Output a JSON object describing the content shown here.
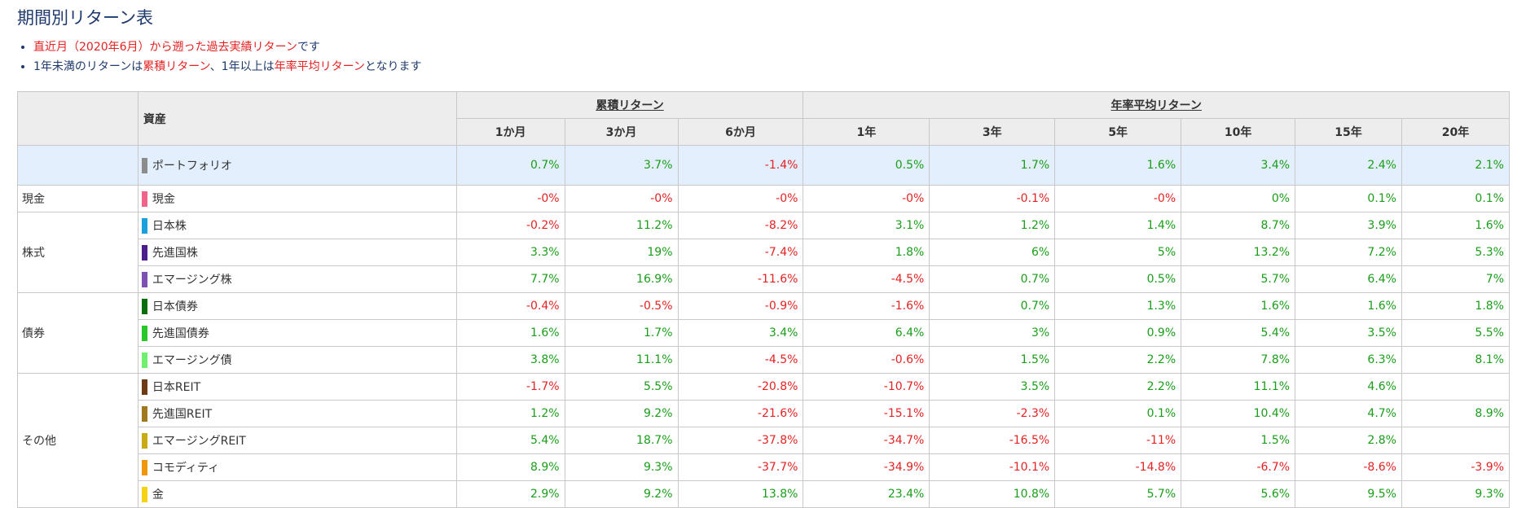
{
  "page": {
    "title": "期間別リターン表",
    "note1": {
      "red": "直近月（2020年6月）から遡った過去実績リターン",
      "after": "です"
    },
    "note2": {
      "p1": "1年未満のリターンは",
      "r1": "累積リターン",
      "p2": "、1年以上は",
      "r2": "年率平均リターン",
      "p3": "となります"
    }
  },
  "table": {
    "asset_header": "資産",
    "group_cumulative": "累積リターン",
    "group_annual": "年率平均リターン",
    "periods": [
      "1か月",
      "3か月",
      "6か月",
      "1年",
      "3年",
      "5年",
      "10年",
      "15年",
      "20年"
    ],
    "portfolio": {
      "name": "ポートフォリオ",
      "color": "#8c8c8c",
      "values": [
        "0.7%",
        "3.7%",
        "-1.4%",
        "0.5%",
        "1.7%",
        "1.6%",
        "3.4%",
        "2.4%",
        "2.1%"
      ]
    },
    "categories": [
      {
        "name": "現金",
        "rows": [
          {
            "name": "現金",
            "color": "#f0648c",
            "values": [
              "-0%",
              "-0%",
              "-0%",
              "-0%",
              "-0.1%",
              "-0%",
              "0%",
              "0.1%",
              "0.1%"
            ]
          }
        ]
      },
      {
        "name": "株式",
        "rows": [
          {
            "name": "日本株",
            "color": "#1aa0dc",
            "values": [
              "-0.2%",
              "11.2%",
              "-8.2%",
              "3.1%",
              "1.2%",
              "1.4%",
              "8.7%",
              "3.9%",
              "1.6%"
            ]
          },
          {
            "name": "先進国株",
            "color": "#4b1e8c",
            "values": [
              "3.3%",
              "19%",
              "-7.4%",
              "1.8%",
              "6%",
              "5%",
              "13.2%",
              "7.2%",
              "5.3%"
            ]
          },
          {
            "name": "エマージング株",
            "color": "#7d50b4",
            "values": [
              "7.7%",
              "16.9%",
              "-11.6%",
              "-4.5%",
              "0.7%",
              "0.5%",
              "5.7%",
              "6.4%",
              "7%"
            ]
          }
        ]
      },
      {
        "name": "債券",
        "rows": [
          {
            "name": "日本債券",
            "color": "#0a6e0a",
            "values": [
              "-0.4%",
              "-0.5%",
              "-0.9%",
              "-1.6%",
              "0.7%",
              "1.3%",
              "1.6%",
              "1.6%",
              "1.8%"
            ]
          },
          {
            "name": "先進国債券",
            "color": "#28c828",
            "values": [
              "1.6%",
              "1.7%",
              "3.4%",
              "6.4%",
              "3%",
              "0.9%",
              "5.4%",
              "3.5%",
              "5.5%"
            ]
          },
          {
            "name": "エマージング債",
            "color": "#6ef06e",
            "values": [
              "3.8%",
              "11.1%",
              "-4.5%",
              "-0.6%",
              "1.5%",
              "2.2%",
              "7.8%",
              "6.3%",
              "8.1%"
            ]
          }
        ]
      },
      {
        "name": "その他",
        "rows": [
          {
            "name": "日本REIT",
            "color": "#6e3c14",
            "values": [
              "-1.7%",
              "5.5%",
              "-20.8%",
              "-10.7%",
              "3.5%",
              "2.2%",
              "11.1%",
              "4.6%",
              ""
            ]
          },
          {
            "name": "先進国REIT",
            "color": "#a0781e",
            "values": [
              "1.2%",
              "9.2%",
              "-21.6%",
              "-15.1%",
              "-2.3%",
              "0.1%",
              "10.4%",
              "4.7%",
              "8.9%"
            ]
          },
          {
            "name": "エマージングREIT",
            "color": "#c8aa14",
            "values": [
              "5.4%",
              "18.7%",
              "-37.8%",
              "-34.7%",
              "-16.5%",
              "-11%",
              "1.5%",
              "2.8%",
              ""
            ]
          },
          {
            "name": "コモディティ",
            "color": "#f0960a",
            "values": [
              "8.9%",
              "9.3%",
              "-37.7%",
              "-34.9%",
              "-10.1%",
              "-14.8%",
              "-6.7%",
              "-8.6%",
              "-3.9%"
            ]
          },
          {
            "name": "金",
            "color": "#f5d214",
            "values": [
              "2.9%",
              "9.2%",
              "13.8%",
              "23.4%",
              "10.8%",
              "5.7%",
              "5.6%",
              "9.5%",
              "9.3%"
            ]
          }
        ]
      }
    ]
  }
}
